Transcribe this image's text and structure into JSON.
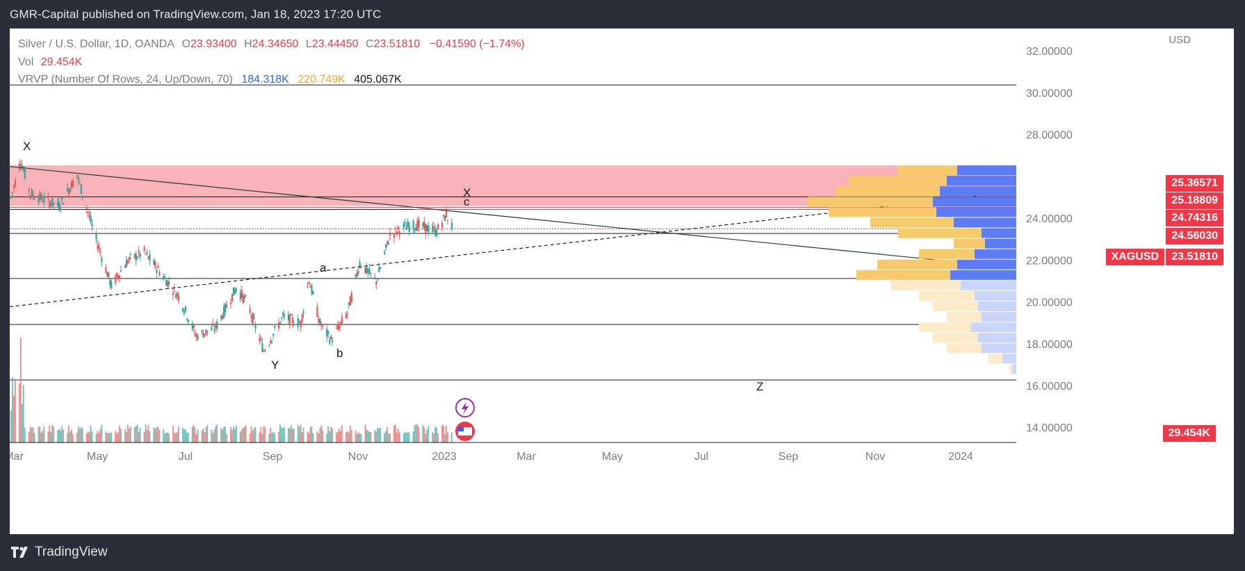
{
  "header": {
    "published_line": "GMR-Capital published on TradingView.com, Jan 18, 2023 17:20 UTC"
  },
  "legend": {
    "symbol": "Silver / U.S. Dollar, 1D, OANDA",
    "o_label": "O",
    "o_value": "23.93400",
    "h_label": "H",
    "h_value": "24.34650",
    "l_label": "L",
    "l_value": "23.44450",
    "c_label": "C",
    "c_value": "23.51810",
    "change": "−0.41590 (−1.74%)",
    "vol_label": "Vol",
    "vol_value": "29.454K",
    "vrvp_label": "VRVP (Number Of Rows, 24, Up/Down, 70)",
    "vrvp_up": "184.318K",
    "vrvp_down": "220.749K",
    "vrvp_total": "405.067K"
  },
  "axis": {
    "currency": "USD"
  },
  "price_tags": {
    "t1": "25.36571",
    "t2": "25.18809",
    "t3": "24.74316",
    "t4": "24.56030",
    "symbol": "XAGUSD",
    "last": "23.51810",
    "volume": "29.454K"
  },
  "footer": {
    "brand": "TradingView"
  },
  "colors": {
    "up": "#26a69a",
    "down": "#ef5350",
    "zone": "#f7a6ab",
    "tag_red": "#f23645",
    "vp_up": "#5b7cf5",
    "vp_down": "#f6c96a"
  },
  "chart_data": {
    "type": "candlestick",
    "symbol": "XAGUSD",
    "ylim": [
      16.0,
      32.0
    ],
    "y_ticks": [
      "32.00000",
      "30.00000",
      "28.00000",
      "24.00000",
      "22.00000",
      "20.00000",
      "18.00000",
      "16.00000",
      "14.00000"
    ],
    "x_ticks": [
      "Mar",
      "May",
      "Jul",
      "Sep",
      "Nov",
      "2023",
      "Mar",
      "May",
      "Jul",
      "Sep",
      "Nov",
      "2024"
    ],
    "horizontal_levels": [
      30.4,
      25.05,
      24.45,
      23.3,
      21.15,
      18.95,
      16.3
    ],
    "resistance_zone": [
      24.62,
      26.55
    ],
    "wave_labels": [
      "X",
      "a",
      "b",
      "Y",
      "X",
      "c",
      "Z"
    ],
    "last_close": 23.5181,
    "change": -0.4159,
    "change_pct": -1.74,
    "price_path": [
      [
        "2022-03-01",
        25.0
      ],
      [
        "2022-03-08",
        26.8
      ],
      [
        "2022-03-15",
        25.2
      ],
      [
        "2022-04-05",
        24.6
      ],
      [
        "2022-04-18",
        26.1
      ],
      [
        "2022-05-01",
        23.2
      ],
      [
        "2022-05-13",
        20.8
      ],
      [
        "2022-05-25",
        22.0
      ],
      [
        "2022-06-06",
        22.4
      ],
      [
        "2022-06-17",
        21.5
      ],
      [
        "2022-07-01",
        20.3
      ],
      [
        "2022-07-14",
        18.4
      ],
      [
        "2022-07-28",
        18.8
      ],
      [
        "2022-08-12",
        20.7
      ],
      [
        "2022-08-20",
        20.0
      ],
      [
        "2022-09-01",
        17.7
      ],
      [
        "2022-09-15",
        19.3
      ],
      [
        "2022-09-28",
        19.0
      ],
      [
        "2022-10-04",
        21.1
      ],
      [
        "2022-10-12",
        19.0
      ],
      [
        "2022-10-20",
        18.2
      ],
      [
        "2022-11-01",
        19.5
      ],
      [
        "2022-11-10",
        21.9
      ],
      [
        "2022-11-22",
        21.0
      ],
      [
        "2022-12-02",
        23.2
      ],
      [
        "2022-12-12",
        23.6
      ],
      [
        "2022-12-22",
        23.7
      ],
      [
        "2023-01-05",
        23.4
      ],
      [
        "2023-01-12",
        24.2
      ],
      [
        "2023-01-17",
        23.52
      ]
    ],
    "volume_profile": {
      "up_total": "184.318K",
      "down_total": "220.749K",
      "total": "405.067K"
    }
  }
}
